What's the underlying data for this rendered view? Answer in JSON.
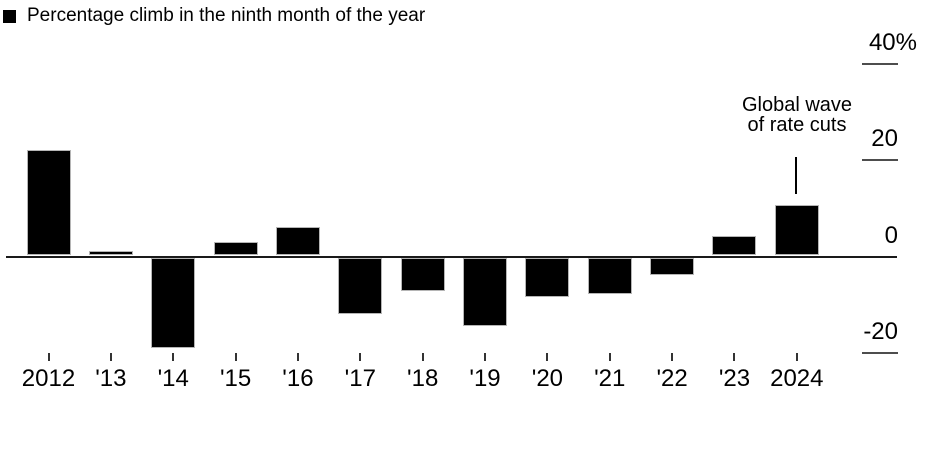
{
  "legend": {
    "label": "Percentage climb in the ninth month of the year",
    "swatch_color": "#000000"
  },
  "annotation": {
    "line1": "Global wave",
    "line2": "of rate cuts",
    "target_category": "2024"
  },
  "chart_data": {
    "type": "bar",
    "title": "Percentage climb in the ninth month of the year",
    "categories": [
      "2012",
      "'13",
      "'14",
      "'15",
      "'16",
      "'17",
      "'18",
      "'19",
      "'20",
      "'21",
      "'22",
      "'23",
      "2024"
    ],
    "values": [
      21.8,
      0.9,
      -18.7,
      2.8,
      5.9,
      -11.8,
      -6.9,
      -14.3,
      -8.2,
      -7.5,
      -3.6,
      4.1,
      10.4
    ],
    "unit": "%",
    "bar_color": "#000000",
    "xlabel": "",
    "ylabel": "",
    "ylim": [
      -25,
      45
    ],
    "y_ticks": [
      {
        "value": 40,
        "label": "40%"
      },
      {
        "value": 20,
        "label": "20"
      },
      {
        "value": 0,
        "label": "0"
      },
      {
        "value": -20,
        "label": "-20"
      }
    ],
    "y_axis_side": "right",
    "grid": false,
    "legend_position": "top-left",
    "annotation": {
      "text": "Global wave of rate cuts",
      "x": "2024"
    }
  }
}
